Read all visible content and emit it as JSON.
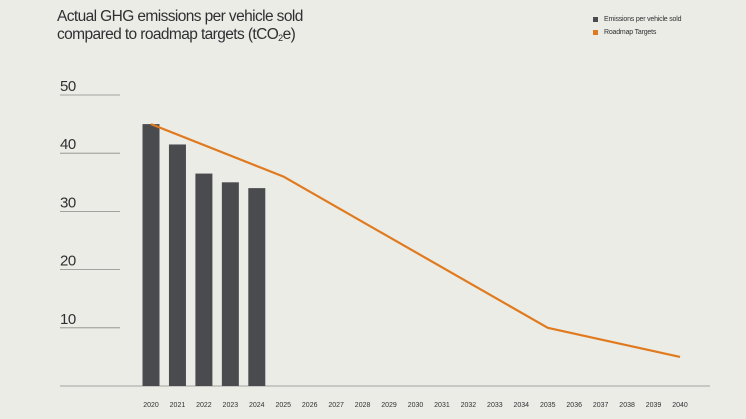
{
  "chart_data": {
    "type": "bar",
    "title_line1": "Actual GHG emissions per vehicle sold",
    "title_line2_pre": "compared to roadmap targets (tCO",
    "title_sub": "2",
    "title_line2_post": "e)",
    "y_ticks": [
      50,
      40,
      30,
      20,
      10
    ],
    "ylim": [
      0,
      50
    ],
    "categories": [
      "2020",
      "2021",
      "2022",
      "2023",
      "2024",
      "2025",
      "2026",
      "2027",
      "2028",
      "2029",
      "2030",
      "2031",
      "2032",
      "2033",
      "2034",
      "2035",
      "2036",
      "2037",
      "2038",
      "2039",
      "2040"
    ],
    "series": [
      {
        "name": "Emissions per vehicle sold",
        "type": "bar",
        "color": "#4a4b4f",
        "values": [
          45,
          41.5,
          36.5,
          35,
          34,
          null,
          null,
          null,
          null,
          null,
          null,
          null,
          null,
          null,
          null,
          null,
          null,
          null,
          null,
          null,
          null
        ]
      },
      {
        "name": "Roadmap Targets",
        "type": "line",
        "color": "#e07a1f",
        "points": [
          [
            "2020",
            45
          ],
          [
            "2025",
            36
          ],
          [
            "2035",
            10
          ],
          [
            "2040",
            5
          ]
        ]
      }
    ],
    "grid": "horizontal-partial",
    "legend": "top-right"
  }
}
